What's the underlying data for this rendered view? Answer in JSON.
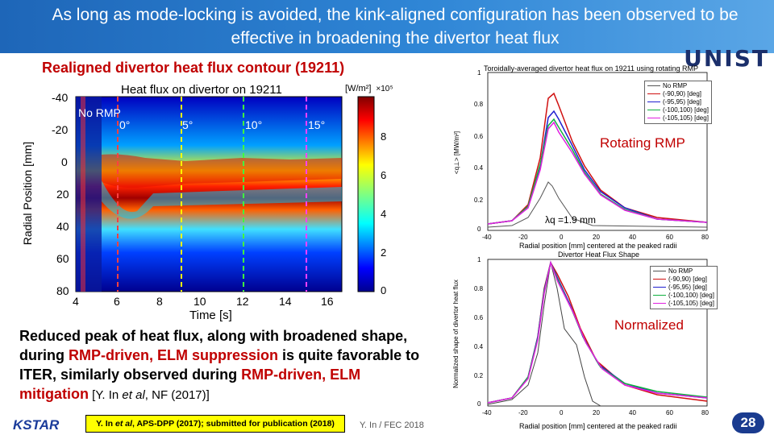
{
  "header": {
    "title": "As long as mode-locking is avoided, the kink-aligned configuration has been observed to be effective in broadening the divertor heat flux",
    "logo": "UNIST"
  },
  "section_title": "Realigned divertor heat flux contour (19211)",
  "heatmap": {
    "title": "Heat flux on divertor on 19211",
    "colorbar_unit": "[W/m²]",
    "colorbar_scale": "×10⁵",
    "ylabel": "Radial Position [mm]",
    "xlabel": "Time [s]",
    "y_ticks": [
      "-40",
      "-20",
      "0",
      "20",
      "40",
      "60",
      "80"
    ],
    "x_ticks": [
      "4",
      "6",
      "8",
      "10",
      "12",
      "14",
      "16"
    ],
    "cb_ticks": [
      "0",
      "2",
      "4",
      "6",
      "8"
    ],
    "no_rmp_label": "No RMP",
    "phase_labels": [
      "0°",
      "5°",
      "10°",
      "15°"
    ],
    "accent_colors": {
      "no_rmp": "#ff4040",
      "phase_0": "#ff4040",
      "phase_5": "#ffff00",
      "phase_10": "#40ff40",
      "phase_15": "#ff40ff"
    }
  },
  "caption": {
    "part1": "Reduced peak of heat flux, along with broadened shape, during ",
    "red1": "RMP-driven, ELM suppression",
    "part2": " is quite favorable to ITER, similarly observed during ",
    "red2": "RMP-driven, ELM mitigation",
    "cite1": " [Y. In ",
    "cite_italic": "et al",
    "cite2": ", NF (2017)]"
  },
  "footer": {
    "kstar_logo": "KSTAR",
    "ref_pre": "Y. In ",
    "ref_italic": "et al",
    "ref_post": ", APS-DPP (2017); submitted for publication (2018)",
    "author": "Y. In / FEC 2018",
    "page": "28"
  },
  "top_plot": {
    "title": "Toroidally-averaged divertor heat flux on 19211 using rotating RMP",
    "label": "Rotating RMP",
    "lambda": "λq =1.9 mm",
    "xlabel": "Radial position [mm] centered at the peaked radii",
    "ylabel": "<q⊥> [MW/m²]",
    "y_ticks": [
      "1",
      "0.8",
      "0.6",
      "0.4",
      "0.2",
      "0"
    ],
    "x_ticks": [
      "-40",
      "-20",
      "0",
      "20",
      "40",
      "60",
      "80"
    ],
    "legend": [
      "No RMP",
      "(-90,90) [deg]",
      "(-95,95) [deg]",
      "(-100,100) [deg]",
      "(-105,105) [deg]"
    ]
  },
  "bottom_plot": {
    "title": "Divertor Heat Flux Shape",
    "label": "Normalized",
    "xlabel": "Radial position [mm] centered at the peaked radii",
    "ylabel": "Normalized shape of divertor heat flux",
    "y_ticks": [
      "1",
      "0.8",
      "0.6",
      "0.4",
      "0.2",
      "0"
    ],
    "x_ticks": [
      "-40",
      "-20",
      "0",
      "20",
      "40",
      "60",
      "80"
    ],
    "legend": [
      "No RMP",
      "(-90,90) [deg]",
      "(-95,95) [deg]",
      "(-100,100) [deg]",
      "(-105,105) [deg]"
    ]
  },
  "series_colors": [
    "#555555",
    "#d01010",
    "#2020d0",
    "#10b040",
    "#e020e0"
  ]
}
